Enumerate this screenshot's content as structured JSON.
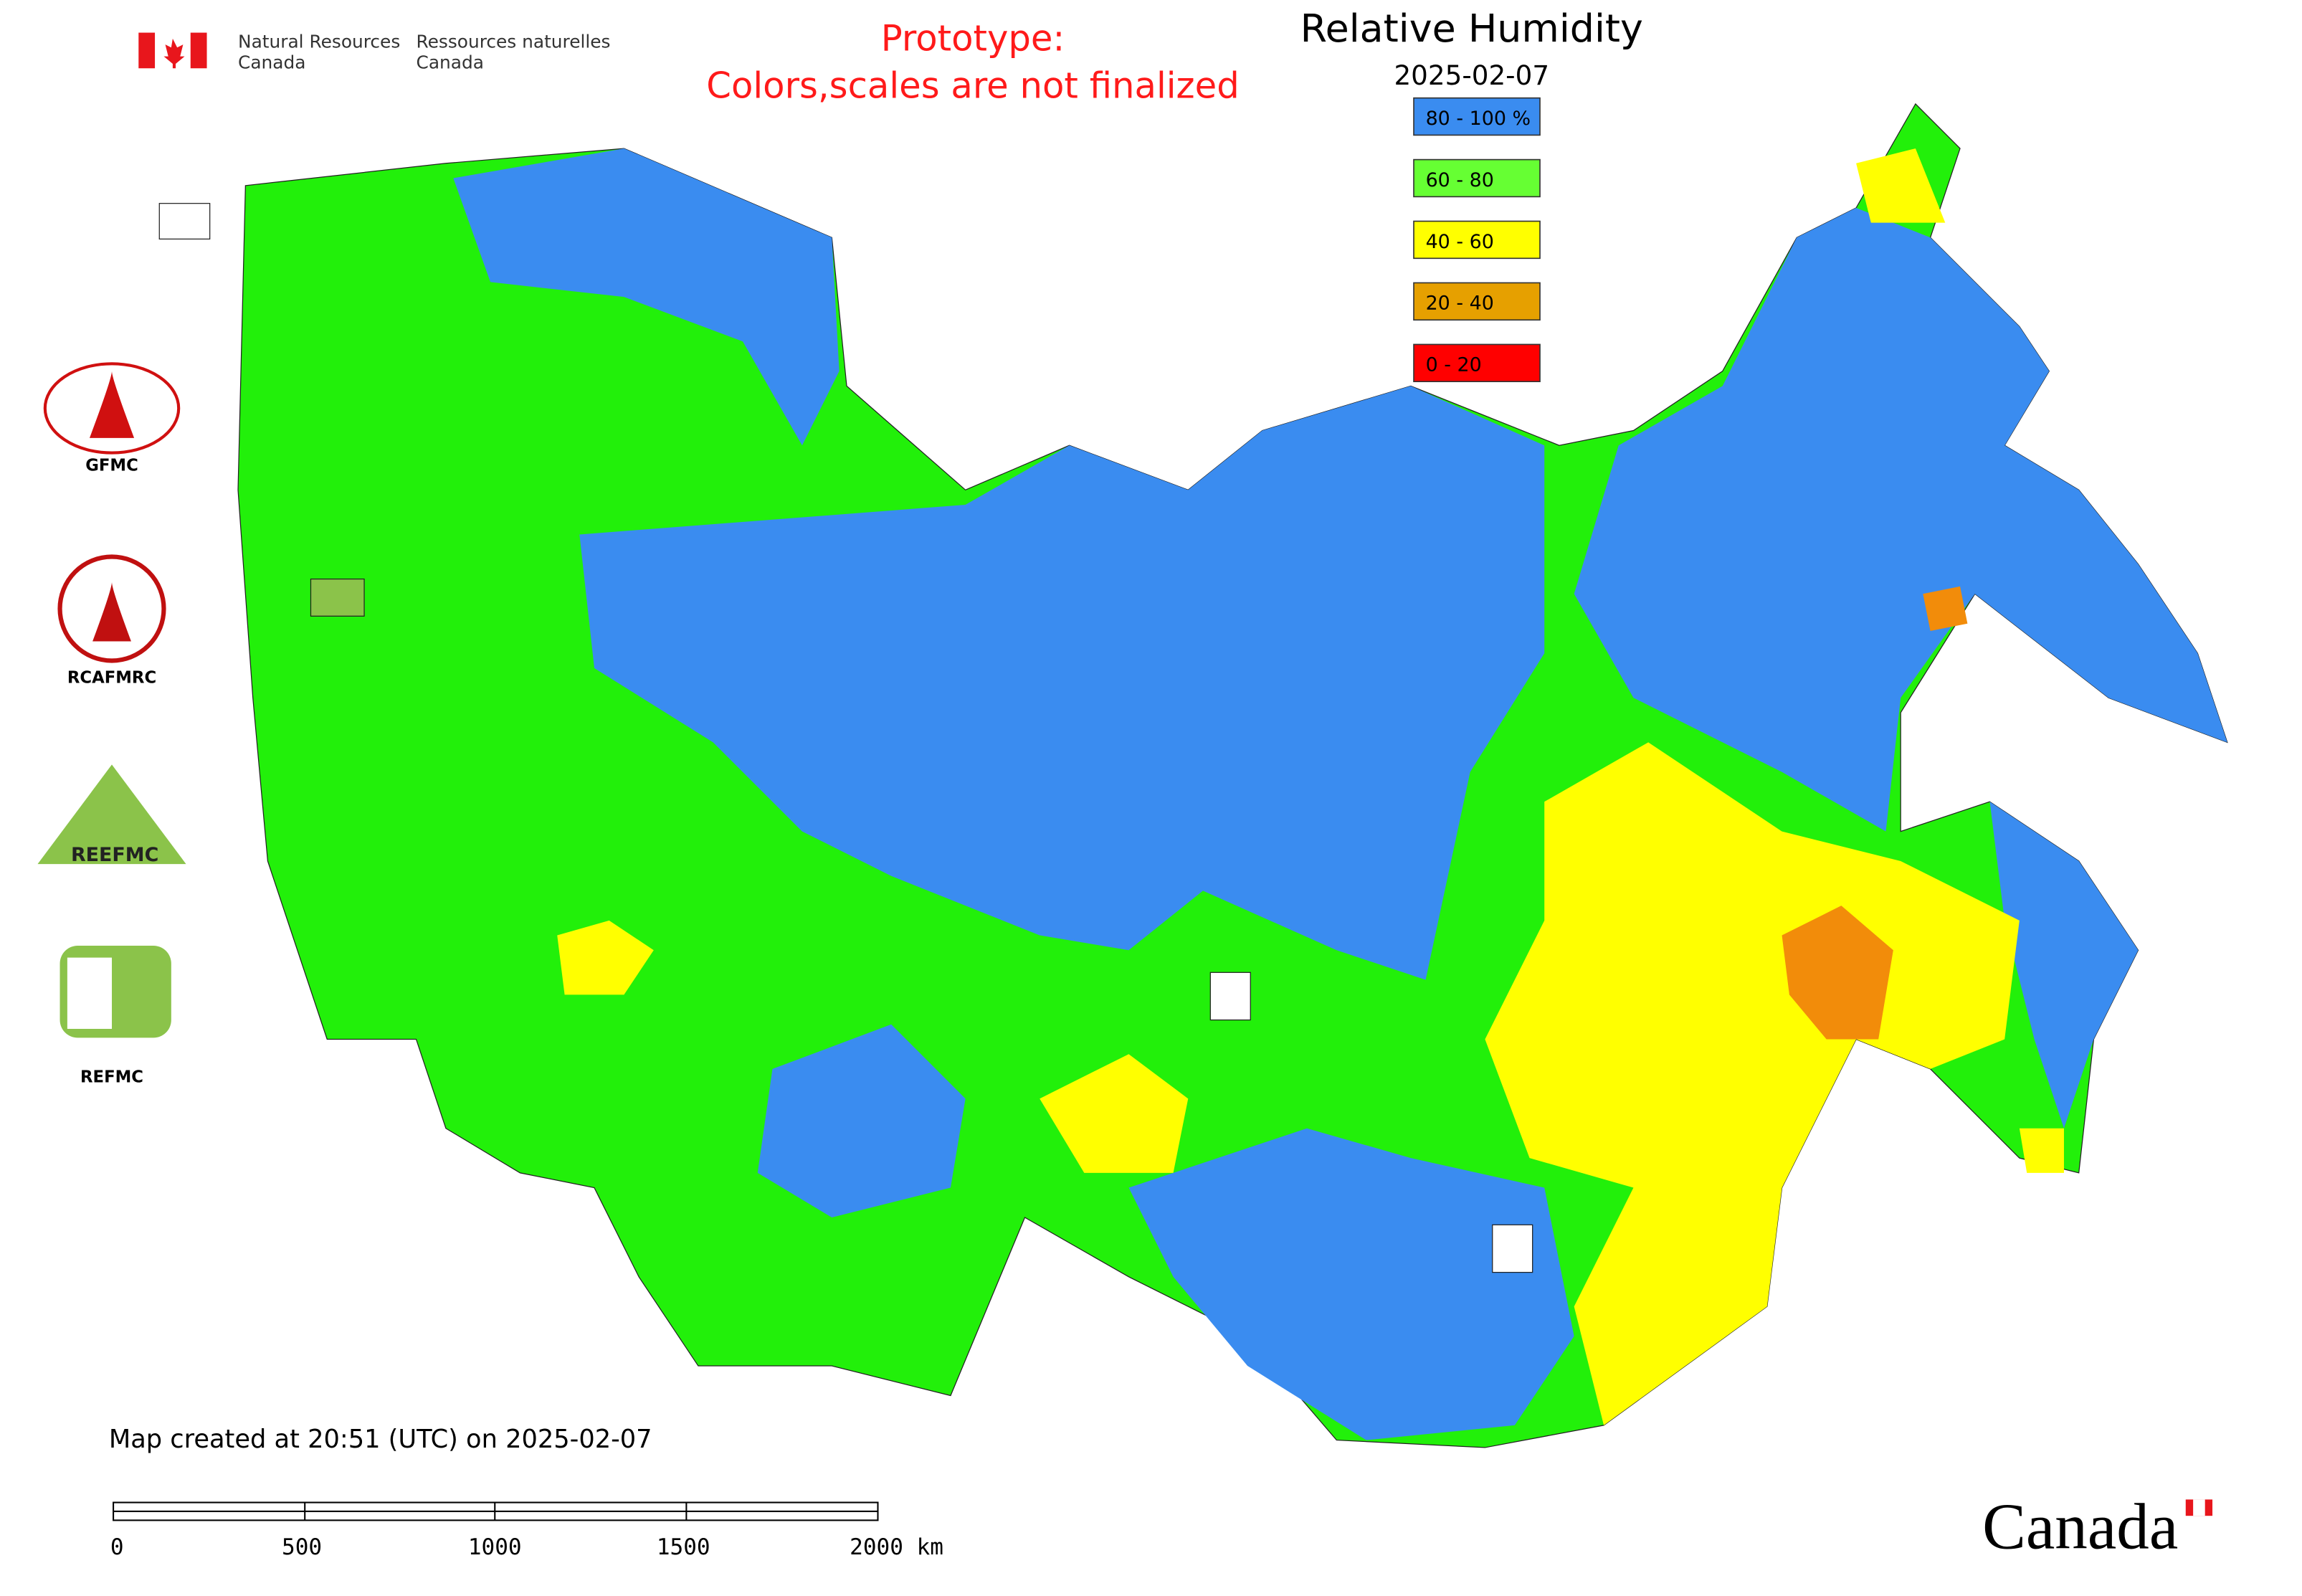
{
  "header": {
    "org_en_line1": "Natural Resources",
    "org_en_line2": "Canada",
    "org_fr_line1": "Ressources naturelles",
    "org_fr_line2": "Canada"
  },
  "notice": {
    "line1": "Prototype:",
    "line2": "Colors,scales are not finalized"
  },
  "legend": {
    "title": "Relative Humidity",
    "date": "2025-02-07",
    "items": [
      {
        "label": "80 - 100 %",
        "color": "#3a8cf0"
      },
      {
        "label": "60 - 80",
        "color": "#66ff33"
      },
      {
        "label": "40 - 60",
        "color": "#ffff00"
      },
      {
        "label": "20 - 40",
        "color": "#e6a000"
      },
      {
        "label": "0 - 20",
        "color": "#ff0000"
      }
    ]
  },
  "partners": {
    "gfmc": "GFMC",
    "rcafmrc": "RCAFMRC",
    "reefmc_logo": "REEFMC",
    "refmc": "REFMC"
  },
  "footer": {
    "created": "Map created at 20:51 (UTC) on 2025-02-07",
    "scale_labels": [
      "0",
      "500",
      "1000",
      "1500",
      "2000 km"
    ],
    "wordmark": "Canada"
  }
}
